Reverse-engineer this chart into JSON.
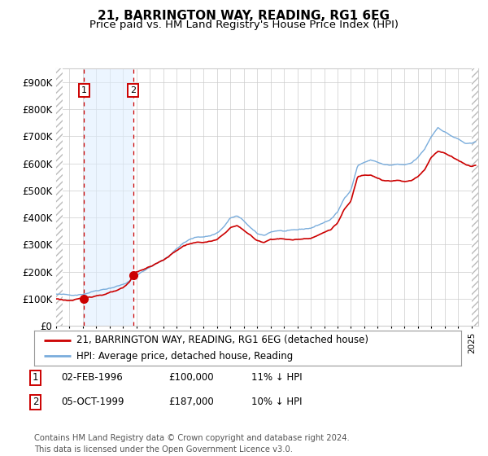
{
  "title": "21, BARRINGTON WAY, READING, RG1 6EG",
  "subtitle": "Price paid vs. HM Land Registry's House Price Index (HPI)",
  "title_fontsize": 11,
  "subtitle_fontsize": 9.5,
  "ylabel_values": [
    "£0",
    "£100K",
    "£200K",
    "£300K",
    "£400K",
    "£500K",
    "£600K",
    "£700K",
    "£800K",
    "£900K"
  ],
  "yticks": [
    0,
    100000,
    200000,
    300000,
    400000,
    500000,
    600000,
    700000,
    800000,
    900000
  ],
  "ylim": [
    0,
    950000
  ],
  "sale1": {
    "date_num": 1996.09,
    "price": 100000,
    "label": "1"
  },
  "sale2": {
    "date_num": 1999.75,
    "price": 187000,
    "label": "2"
  },
  "shade_start": 1996.09,
  "shade_end": 1999.75,
  "legend_line1": "21, BARRINGTON WAY, READING, RG1 6EG (detached house)",
  "legend_line2": "HPI: Average price, detached house, Reading",
  "table_entries": [
    {
      "num": "1",
      "date": "02-FEB-1996",
      "price": "£100,000",
      "hpi": "11% ↓ HPI"
    },
    {
      "num": "2",
      "date": "05-OCT-1999",
      "price": "£187,000",
      "hpi": "10% ↓ HPI"
    }
  ],
  "footer": "Contains HM Land Registry data © Crown copyright and database right 2024.\nThis data is licensed under the Open Government Licence v3.0.",
  "hatch_color": "#bbbbbb",
  "shade_color": "#ddeeff",
  "grid_color": "#cccccc",
  "red_line_color": "#cc0000",
  "blue_line_color": "#7aaddc",
  "sale_marker_color": "#cc0000",
  "vline_color": "#cc0000",
  "box_color": "#cc0000",
  "xlim_left": 1994.0,
  "xlim_right": 2025.5,
  "hatch_left_end": 1994.5,
  "hatch_right_start": 2025.0
}
